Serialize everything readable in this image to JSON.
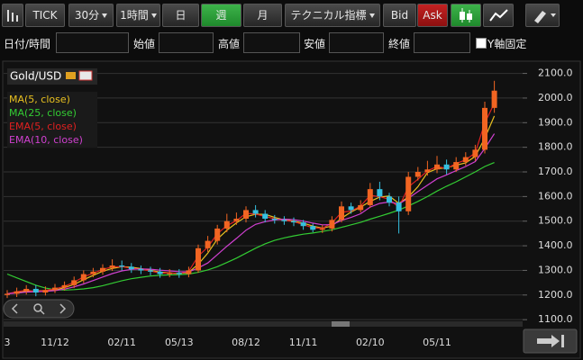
{
  "toolbar": {
    "buttons": [
      "TICK",
      "30分",
      "1時間",
      "日",
      "週",
      "月",
      "テクニカル指標",
      "Bid",
      "Ask"
    ]
  },
  "inputs": {
    "labels": [
      "日付/時間",
      "始値",
      "高値",
      "安値",
      "終値"
    ],
    "checkbox": "Y軸固定"
  },
  "chart_data": {
    "type": "candlestick",
    "title": "Gold/USD",
    "categories": [
      "3",
      null,
      null,
      null,
      null,
      "11/12",
      null,
      null,
      null,
      null,
      null,
      null,
      "02/11",
      null,
      null,
      null,
      null,
      null,
      "05/13",
      null,
      null,
      null,
      null,
      null,
      null,
      "08/12",
      null,
      null,
      null,
      null,
      null,
      "11/11",
      null,
      null,
      null,
      null,
      null,
      null,
      "02/10",
      null,
      null,
      null,
      null,
      null,
      null,
      "05/11",
      null,
      null,
      null,
      null,
      null,
      null
    ],
    "open": [
      1200,
      1205,
      1215,
      1225,
      1210,
      1220,
      1230,
      1240,
      1260,
      1285,
      1295,
      1310,
      1320,
      1315,
      1305,
      1300,
      1295,
      1285,
      1290,
      1285,
      1300,
      1390,
      1420,
      1470,
      1500,
      1510,
      1545,
      1530,
      1510,
      1505,
      1500,
      1495,
      1480,
      1465,
      1470,
      1505,
      1560,
      1545,
      1565,
      1630,
      1600,
      1575,
      1540,
      1680,
      1700,
      1710,
      1730,
      1710,
      1740,
      1760,
      1790,
      1960
    ],
    "high": [
      1220,
      1230,
      1240,
      1240,
      1235,
      1245,
      1255,
      1275,
      1300,
      1310,
      1325,
      1345,
      1340,
      1330,
      1320,
      1315,
      1310,
      1305,
      1305,
      1315,
      1405,
      1440,
      1485,
      1530,
      1535,
      1560,
      1565,
      1545,
      1525,
      1520,
      1515,
      1505,
      1490,
      1485,
      1520,
      1580,
      1575,
      1585,
      1655,
      1660,
      1615,
      1600,
      1700,
      1720,
      1745,
      1765,
      1750,
      1760,
      1780,
      1810,
      1985,
      2070
    ],
    "low": [
      1188,
      1192,
      1202,
      1195,
      1198,
      1208,
      1218,
      1228,
      1248,
      1272,
      1282,
      1298,
      1300,
      1290,
      1285,
      1280,
      1270,
      1272,
      1270,
      1272,
      1290,
      1375,
      1405,
      1455,
      1485,
      1495,
      1515,
      1495,
      1490,
      1485,
      1480,
      1465,
      1455,
      1452,
      1458,
      1495,
      1530,
      1535,
      1555,
      1585,
      1560,
      1450,
      1525,
      1665,
      1685,
      1695,
      1690,
      1700,
      1725,
      1745,
      1775,
      1940
    ],
    "close": [
      1205,
      1215,
      1225,
      1210,
      1220,
      1230,
      1240,
      1260,
      1285,
      1295,
      1310,
      1320,
      1315,
      1305,
      1300,
      1295,
      1285,
      1290,
      1285,
      1300,
      1390,
      1420,
      1470,
      1500,
      1510,
      1545,
      1530,
      1510,
      1505,
      1500,
      1495,
      1480,
      1465,
      1470,
      1505,
      1560,
      1545,
      1565,
      1630,
      1600,
      1575,
      1540,
      1680,
      1700,
      1710,
      1730,
      1710,
      1740,
      1760,
      1790,
      1960,
      2030
    ],
    "up_color": "#f26522",
    "down_color": "#35c0e0",
    "series": [
      {
        "name": "MA(5, close)",
        "color": "#e8c020",
        "values": [
          1205,
          1210,
          1215,
          1217,
          1218,
          1220,
          1230,
          1243,
          1262,
          1280,
          1297,
          1308,
          1315,
          1313,
          1307,
          1300,
          1293,
          1290,
          1287,
          1292,
          1325,
          1370,
          1427,
          1463,
          1493,
          1518,
          1528,
          1528,
          1515,
          1505,
          1500,
          1492,
          1480,
          1472,
          1480,
          1512,
          1537,
          1557,
          1580,
          1598,
          1602,
          1572,
          1598,
          1640,
          1697,
          1713,
          1717,
          1727,
          1737,
          1763,
          1837,
          1927
        ]
      },
      {
        "name": "MA(25, close)",
        "color": "#33cc33",
        "values": [
          1285,
          1270,
          1255,
          1240,
          1228,
          1222,
          1220,
          1222,
          1225,
          1230,
          1238,
          1248,
          1258,
          1266,
          1272,
          1277,
          1280,
          1282,
          1283,
          1285,
          1292,
          1302,
          1315,
          1332,
          1350,
          1370,
          1390,
          1408,
          1422,
          1432,
          1440,
          1447,
          1452,
          1458,
          1465,
          1475,
          1485,
          1495,
          1508,
          1520,
          1532,
          1545,
          1562,
          1580,
          1600,
          1622,
          1642,
          1660,
          1680,
          1700,
          1722,
          1738
        ]
      },
      {
        "name": "EMA(5, close)",
        "color": "#e02020",
        "values": [
          1205,
          1213,
          1220,
          1214,
          1219,
          1225,
          1235,
          1252,
          1274,
          1288,
          1304,
          1314,
          1315,
          1309,
          1304,
          1298,
          1289,
          1290,
          1286,
          1296,
          1358,
          1395,
          1449,
          1482,
          1502,
          1532,
          1529,
          1519,
          1510,
          1503,
          1498,
          1486,
          1473,
          1471,
          1493,
          1536,
          1541,
          1561,
          1605,
          1599,
          1589,
          1556,
          1639,
          1670,
          1704,
          1722,
          1714,
          1734,
          1749,
          1777,
          1899,
          1979
        ]
      },
      {
        "name": "EMA(10, close)",
        "color": "#d040d0",
        "values": [
          1205,
          1208,
          1212,
          1213,
          1215,
          1218,
          1224,
          1233,
          1245,
          1259,
          1273,
          1287,
          1298,
          1304,
          1306,
          1305,
          1301,
          1298,
          1295,
          1294,
          1310,
          1330,
          1364,
          1398,
          1430,
          1463,
          1487,
          1498,
          1505,
          1508,
          1506,
          1500,
          1492,
          1485,
          1486,
          1503,
          1515,
          1530,
          1557,
          1572,
          1578,
          1570,
          1593,
          1620,
          1646,
          1672,
          1688,
          1705,
          1722,
          1742,
          1795,
          1855
        ]
      }
    ],
    "ylim": [
      1075,
      2135
    ],
    "yticks": [
      {
        "value": 1100,
        "label": "1100.0"
      },
      {
        "value": 1200,
        "label": "1200.0"
      },
      {
        "value": 1300,
        "label": "1300.0"
      },
      {
        "value": 1400,
        "label": "1400.0"
      },
      {
        "value": 1500,
        "label": "1500.0"
      },
      {
        "value": 1600,
        "label": "1600.0"
      },
      {
        "value": 1700,
        "label": "1700.0"
      },
      {
        "value": 1800,
        "label": "1800.0"
      },
      {
        "value": 1900,
        "label": "1900.0"
      },
      {
        "value": 2000,
        "label": "2000.0"
      },
      {
        "value": 2100,
        "label": "2100.0"
      }
    ],
    "grid": true
  }
}
